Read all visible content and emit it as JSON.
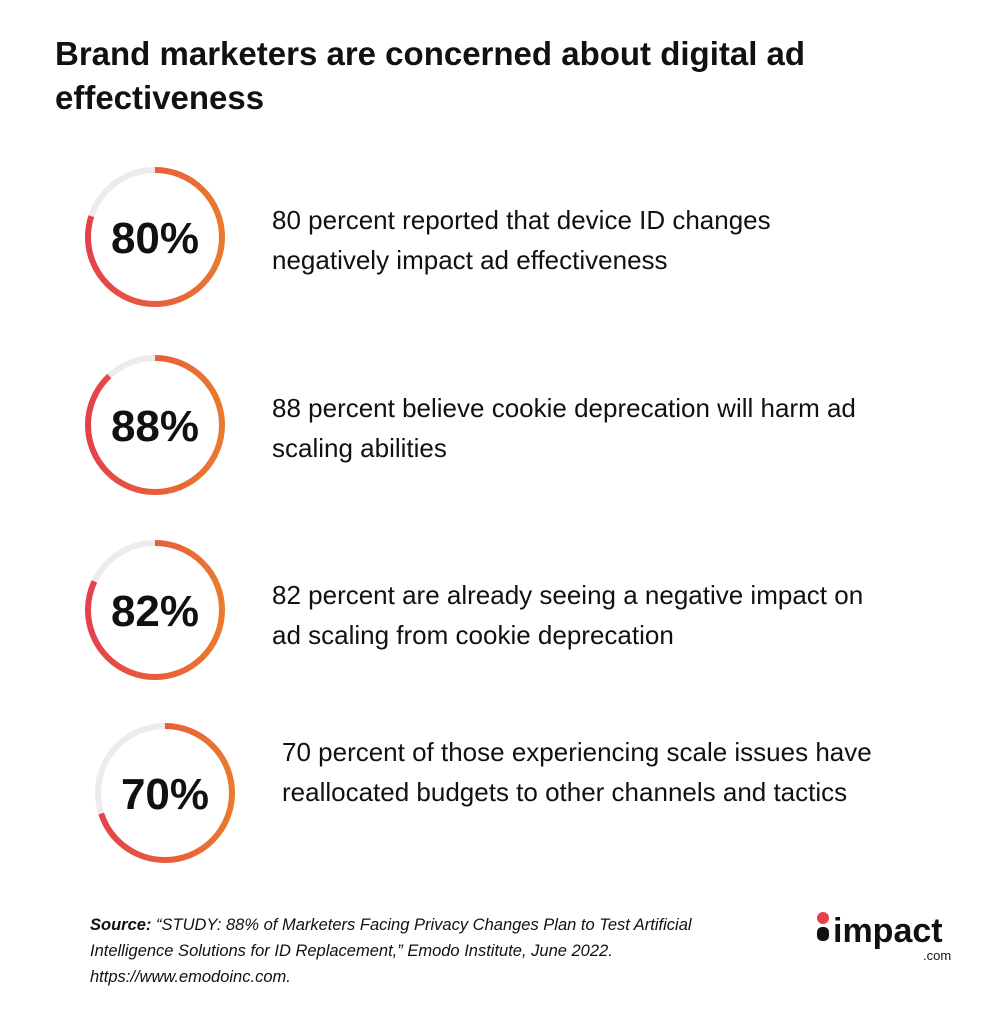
{
  "title": "Brand marketers are concerned about digital ad effectiveness",
  "stats": [
    {
      "value": 80,
      "value_label": "80%",
      "text": "80 percent reported that device ID changes negatively impact ad effectiveness"
    },
    {
      "value": 88,
      "value_label": "88%",
      "text": "88 percent believe cookie deprecation will harm ad scaling abilities"
    },
    {
      "value": 82,
      "value_label": "82%",
      "text": "82 percent are already seeing a negative impact on ad scaling from cookie deprecation"
    },
    {
      "value": 70,
      "value_label": "70%",
      "text": "70 percent of those experiencing scale issues have reallocated budgets to other channels and tactics"
    }
  ],
  "source": {
    "label": "Source:",
    "text": "“STUDY: 88% of Marketers Facing Privacy Changes Plan to Test Artificial Intelligence Solutions for ID Replacement,” Emodo Institute, June 2022. https://www.emodoinc.com."
  },
  "logo": {
    "name": "impact",
    "suffix": ".com"
  }
}
